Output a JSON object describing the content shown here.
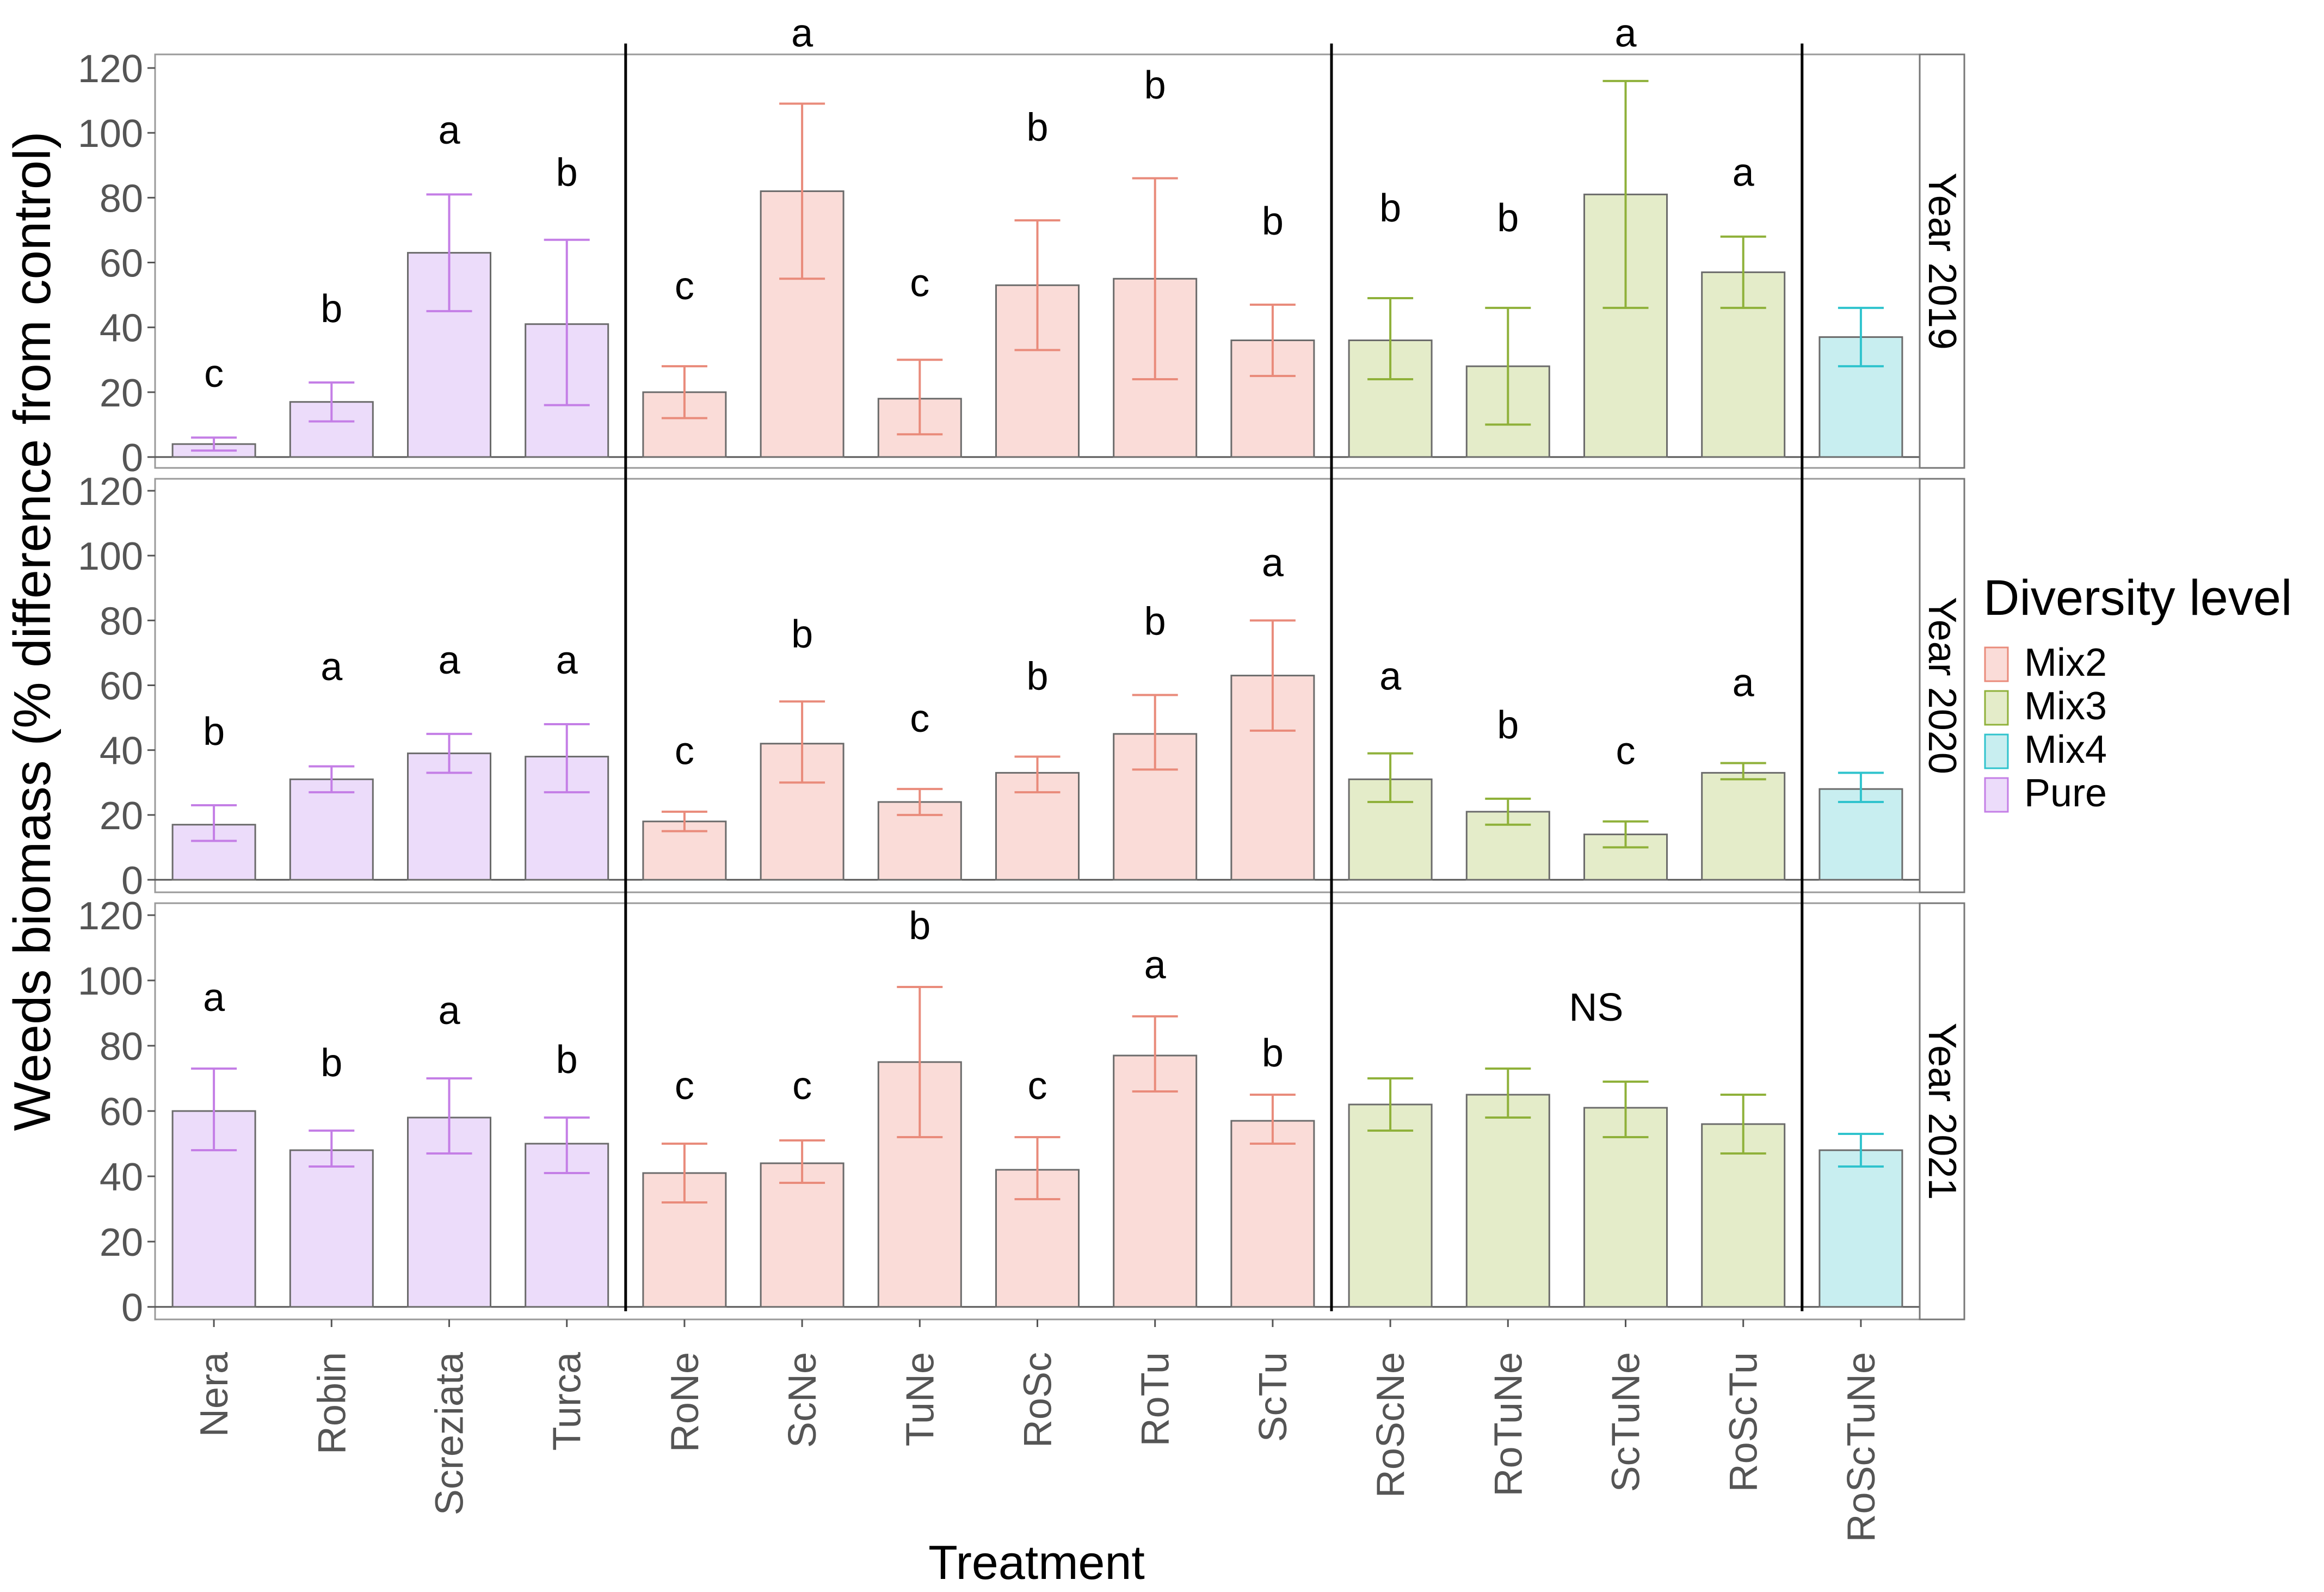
{
  "chart_data": {
    "type": "bar",
    "ylabel": "Weeds biomass (% difference from control)",
    "xlabel": "Treatment",
    "ylim": [
      0,
      120
    ],
    "yticks": [
      0,
      20,
      40,
      60,
      80,
      100,
      120
    ],
    "grid": false,
    "legend": {
      "title": "Diversity level",
      "position": "right",
      "entries": [
        {
          "label": "Mix2",
          "fill": "#fadcd8",
          "stroke": "#e98b7b"
        },
        {
          "label": "Mix3",
          "fill": "#e4ecc9",
          "stroke": "#8fb13a"
        },
        {
          "label": "Mix4",
          "fill": "#c8eef0",
          "stroke": "#2fc3cd"
        },
        {
          "label": "Pure",
          "fill": "#ecdcfa",
          "stroke": "#c47ee6"
        }
      ]
    },
    "categories": [
      "Nera",
      "Robin",
      "Screziata",
      "Turca",
      "RoNe",
      "ScNe",
      "TuNe",
      "RoSc",
      "RoTu",
      "ScTu",
      "RoScNe",
      "RoTuNe",
      "ScTuNe",
      "RoScTu",
      "RoScTuNe"
    ],
    "groups": [
      "Pure",
      "Pure",
      "Pure",
      "Pure",
      "Mix2",
      "Mix2",
      "Mix2",
      "Mix2",
      "Mix2",
      "Mix2",
      "Mix3",
      "Mix3",
      "Mix3",
      "Mix3",
      "Mix4"
    ],
    "panels": [
      {
        "label": "Year 2019",
        "values": [
          4,
          17,
          63,
          41,
          20,
          82,
          18,
          53,
          55,
          36,
          36,
          28,
          81,
          57,
          37
        ],
        "err_low": [
          2,
          11,
          45,
          16,
          12,
          55,
          7,
          33,
          24,
          25,
          24,
          10,
          46,
          46,
          28
        ],
        "err_high": [
          6,
          23,
          81,
          67,
          28,
          109,
          30,
          73,
          86,
          47,
          49,
          46,
          116,
          68,
          46
        ],
        "letters": [
          "c",
          "b",
          "a",
          "b",
          "c",
          "a",
          "c",
          "b",
          "b",
          "b",
          "b",
          "b",
          "a",
          "a",
          ""
        ],
        "letter_values": [
          26,
          46,
          101,
          88,
          53,
          131,
          54,
          102,
          115,
          73,
          77,
          74,
          131,
          88,
          null
        ]
      },
      {
        "label": "Year 2020",
        "values": [
          17,
          31,
          39,
          38,
          18,
          42,
          24,
          33,
          45,
          63,
          31,
          21,
          14,
          33,
          28
        ],
        "err_low": [
          12,
          27,
          33,
          27,
          15,
          30,
          20,
          27,
          34,
          46,
          24,
          17,
          10,
          31,
          24
        ],
        "err_high": [
          23,
          35,
          45,
          48,
          21,
          55,
          28,
          38,
          57,
          80,
          39,
          25,
          18,
          36,
          33
        ],
        "letters": [
          "b",
          "a",
          "a",
          "a",
          "c",
          "b",
          "c",
          "b",
          "b",
          "a",
          "a",
          "b",
          "c",
          "a",
          ""
        ],
        "letter_values": [
          46,
          66,
          68,
          68,
          40,
          76,
          50,
          63,
          80,
          98,
          63,
          48,
          40,
          61,
          null
        ]
      },
      {
        "label": "Year 2021",
        "values": [
          60,
          48,
          58,
          50,
          41,
          44,
          75,
          42,
          77,
          57,
          62,
          65,
          61,
          56,
          48
        ],
        "err_low": [
          48,
          43,
          47,
          41,
          32,
          38,
          52,
          33,
          66,
          50,
          54,
          58,
          52,
          47,
          43
        ],
        "err_high": [
          73,
          54,
          70,
          58,
          50,
          51,
          98,
          52,
          89,
          65,
          70,
          73,
          69,
          65,
          53
        ],
        "letters": [
          "a",
          "b",
          "a",
          "b",
          "c",
          "c",
          "b",
          "c",
          "a",
          "b",
          "",
          "",
          "",
          "",
          ""
        ],
        "letter_values": [
          95,
          75,
          91,
          76,
          68,
          68,
          117,
          68,
          105,
          78,
          null,
          null,
          null,
          null,
          null
        ]
      }
    ],
    "annotations": [
      {
        "text": "NS",
        "panel": 2,
        "between": [
          "RoTuNe",
          "ScTuNe"
        ],
        "value": 92
      }
    ]
  }
}
